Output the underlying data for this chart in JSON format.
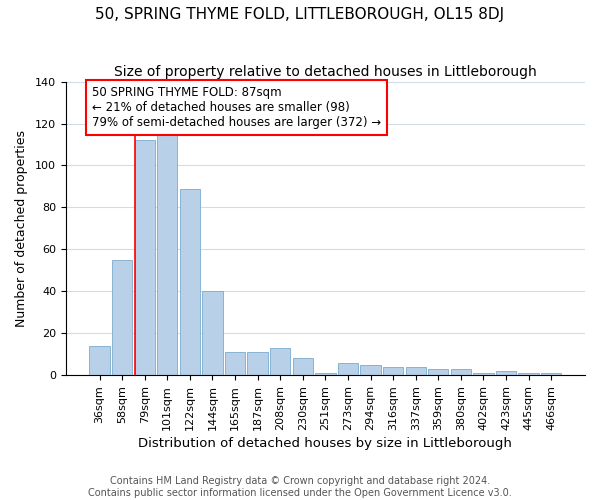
{
  "title": "50, SPRING THYME FOLD, LITTLEBOROUGH, OL15 8DJ",
  "subtitle": "Size of property relative to detached houses in Littleborough",
  "xlabel": "Distribution of detached houses by size in Littleborough",
  "ylabel": "Number of detached properties",
  "categories": [
    "36sqm",
    "58sqm",
    "79sqm",
    "101sqm",
    "122sqm",
    "144sqm",
    "165sqm",
    "187sqm",
    "208sqm",
    "230sqm",
    "251sqm",
    "273sqm",
    "294sqm",
    "316sqm",
    "337sqm",
    "359sqm",
    "380sqm",
    "402sqm",
    "423sqm",
    "445sqm",
    "466sqm"
  ],
  "values": [
    14,
    55,
    112,
    115,
    89,
    40,
    11,
    11,
    13,
    8,
    1,
    6,
    5,
    4,
    4,
    3,
    3,
    1,
    2,
    1,
    1
  ],
  "bar_color": "#b8d0e8",
  "bar_edge_color": "#7aabcf",
  "red_line_index": 2,
  "annotation_text": "50 SPRING THYME FOLD: 87sqm\n← 21% of detached houses are smaller (98)\n79% of semi-detached houses are larger (372) →",
  "annotation_box_color": "white",
  "annotation_box_edge": "red",
  "ylim": [
    0,
    140
  ],
  "yticks": [
    0,
    20,
    40,
    60,
    80,
    100,
    120,
    140
  ],
  "footer": "Contains HM Land Registry data © Crown copyright and database right 2024.\nContains public sector information licensed under the Open Government Licence v3.0.",
  "title_fontsize": 11,
  "subtitle_fontsize": 10,
  "xlabel_fontsize": 9.5,
  "ylabel_fontsize": 9,
  "tick_fontsize": 8,
  "annotation_fontsize": 8.5,
  "footer_fontsize": 7,
  "background_color": "#ffffff",
  "plot_background": "#ffffff",
  "grid_color": "#d0dce8"
}
